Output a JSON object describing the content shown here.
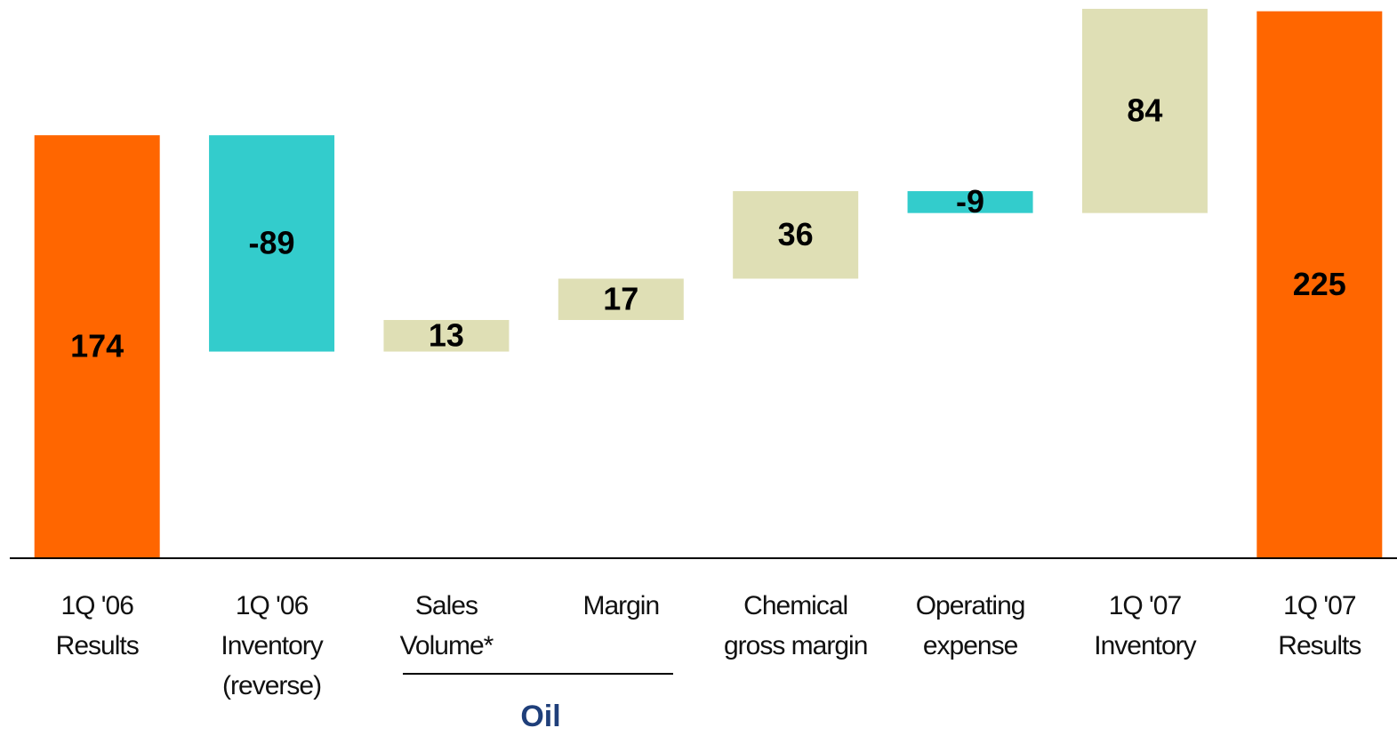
{
  "chart_data": {
    "type": "waterfall",
    "categories": [
      [
        "1Q '06",
        "Results"
      ],
      [
        "1Q '06",
        "Inventory",
        "(reverse)"
      ],
      [
        "Sales",
        "Volume*"
      ],
      [
        "Margin"
      ],
      [
        "Chemical",
        "gross margin"
      ],
      [
        "Operating",
        "expense"
      ],
      [
        "1Q '07",
        "Inventory"
      ],
      [
        "1Q '07",
        "Results"
      ]
    ],
    "values": [
      174,
      -89,
      13,
      17,
      36,
      -9,
      84,
      225
    ],
    "measure": [
      "total",
      "relative",
      "relative",
      "relative",
      "relative",
      "relative",
      "relative",
      "total"
    ],
    "colors": {
      "total": "#ff6600",
      "increase": "#dfdfb5",
      "decrease": "#33cccc"
    },
    "ylim": [
      0,
      230
    ],
    "annotation": "Oil"
  }
}
